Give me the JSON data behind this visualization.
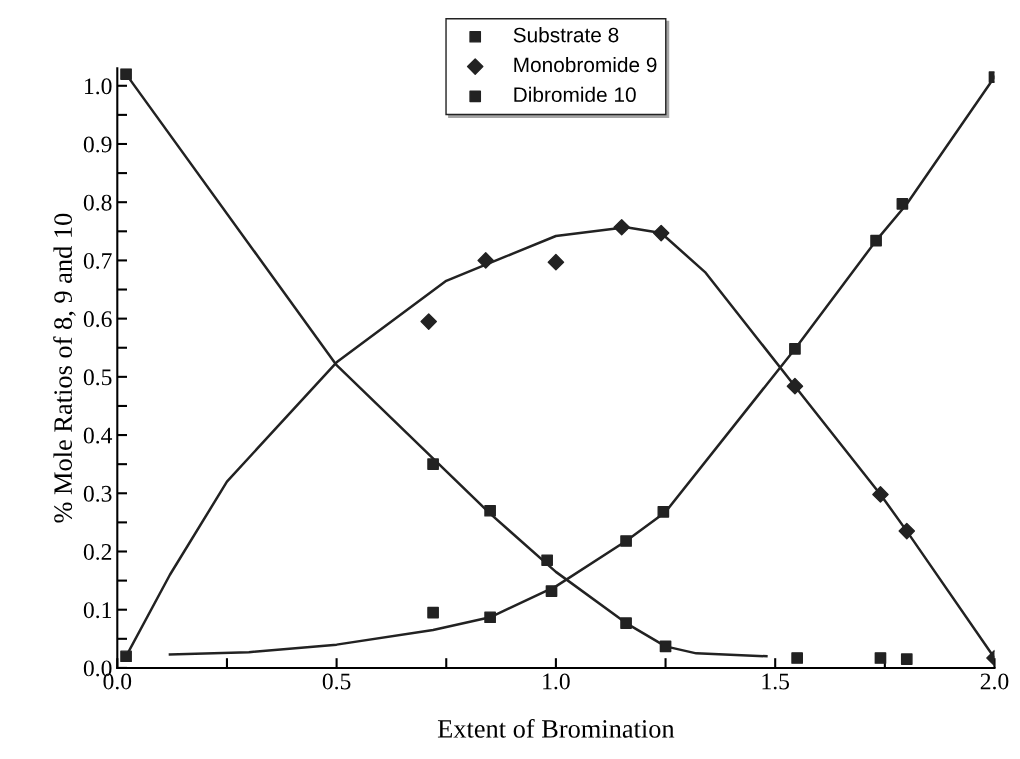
{
  "chart_data": {
    "type": "scatter",
    "xlabel": "Extent of Bromination",
    "ylabel": "% Mole Ratios of 8, 9 and 10",
    "xlim": [
      0,
      2.0
    ],
    "ylim": [
      0,
      1.03
    ],
    "xticks": [
      {
        "value": 0,
        "label": "0.0"
      },
      {
        "value": 0.25,
        "label": null
      },
      {
        "value": 0.5,
        "label": "0.5"
      },
      {
        "value": 0.75,
        "label": null
      },
      {
        "value": 1.0,
        "label": "1.0"
      },
      {
        "value": 1.25,
        "label": null
      },
      {
        "value": 1.5,
        "label": "1.5"
      },
      {
        "value": 1.75,
        "label": null
      },
      {
        "value": 2.0,
        "label": "2.0"
      }
    ],
    "yticks": [
      {
        "value": 0,
        "label": "0.0"
      },
      {
        "value": 0.05,
        "label": null
      },
      {
        "value": 0.1,
        "label": "0.1"
      },
      {
        "value": 0.15,
        "label": null
      },
      {
        "value": 0.2,
        "label": "0.2"
      },
      {
        "value": 0.25,
        "label": null
      },
      {
        "value": 0.3,
        "label": "0.3"
      },
      {
        "value": 0.35,
        "label": null
      },
      {
        "value": 0.4,
        "label": "0.4"
      },
      {
        "value": 0.45,
        "label": null
      },
      {
        "value": 0.5,
        "label": "0.5"
      },
      {
        "value": 0.55,
        "label": null
      },
      {
        "value": 0.6,
        "label": "0.6"
      },
      {
        "value": 0.65,
        "label": null
      },
      {
        "value": 0.7,
        "label": "0.7"
      },
      {
        "value": 0.75,
        "label": null
      },
      {
        "value": 0.8,
        "label": "0.8"
      },
      {
        "value": 0.85,
        "label": null
      },
      {
        "value": 0.9,
        "label": "0.9"
      },
      {
        "value": 0.95,
        "label": null
      },
      {
        "value": 1.0,
        "label": "1.0"
      }
    ],
    "grid": false,
    "legend": "top",
    "series": [
      {
        "type": "line",
        "color": "#222222",
        "marker": "none",
        "x": [
          0.02,
          0.5,
          0.85,
          1.0,
          1.16,
          1.25,
          1.32,
          1.48
        ],
        "values": [
          1.02,
          0.52,
          0.265,
          0.165,
          0.077,
          0.037,
          0.025,
          0.02
        ]
      },
      {
        "type": "line",
        "color": "#222222",
        "marker": "none",
        "x": [
          0.02,
          0.12,
          0.25,
          0.5,
          0.75,
          1.0,
          1.16,
          1.24,
          1.34,
          1.545,
          1.74,
          1.8,
          2.0
        ],
        "values": [
          0.02,
          0.16,
          0.32,
          0.525,
          0.665,
          0.742,
          0.757,
          0.747,
          0.68,
          0.484,
          0.298,
          0.235,
          0.017
        ]
      },
      {
        "type": "line",
        "color": "#222222",
        "marker": "none",
        "x": [
          0.12,
          0.3,
          0.5,
          0.72,
          0.85,
          1.0,
          1.16,
          1.25,
          1.545,
          1.73,
          1.8,
          2.0
        ],
        "values": [
          0.023,
          0.027,
          0.04,
          0.065,
          0.087,
          0.14,
          0.218,
          0.268,
          0.548,
          0.734,
          0.797,
          1.015
        ]
      },
      {
        "name": "Substrate 8",
        "color": "#222222",
        "marker": "square",
        "x": [
          0.02,
          0.72,
          0.85,
          0.98,
          1.16,
          1.25,
          1.55,
          1.74,
          1.8
        ],
        "values": [
          1.02,
          0.35,
          0.27,
          0.185,
          0.077,
          0.037,
          0.017,
          0.017,
          0.015
        ]
      },
      {
        "name": "Monobromide 9",
        "color": "#222222",
        "marker": "diamond",
        "x": [
          0.71,
          0.84,
          1.0,
          1.15,
          1.24,
          1.545,
          1.74,
          1.8,
          2.0
        ],
        "values": [
          0.595,
          0.7,
          0.697,
          0.757,
          0.747,
          0.484,
          0.298,
          0.235,
          0.017
        ]
      },
      {
        "name": "Dibromide 10",
        "color": "#222222",
        "marker": "square",
        "x": [
          0.02,
          0.72,
          0.85,
          0.99,
          1.16,
          1.245,
          1.545,
          1.73,
          1.79,
          2.0
        ],
        "values": [
          0.02,
          0.095,
          0.087,
          0.132,
          0.218,
          0.268,
          0.548,
          0.734,
          0.797,
          1.015
        ]
      }
    ]
  }
}
